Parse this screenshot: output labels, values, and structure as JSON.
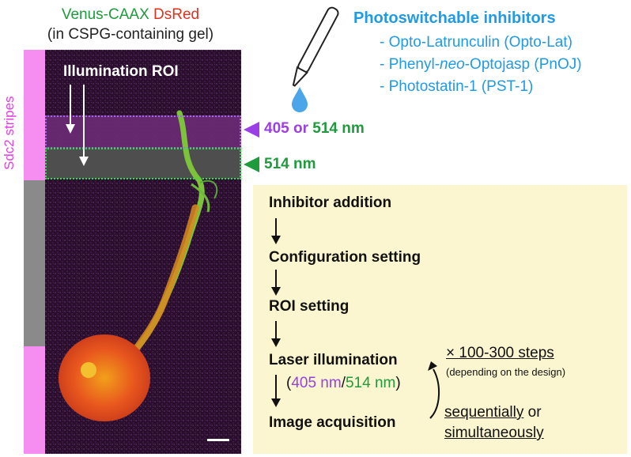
{
  "image_header": {
    "venus": "Venus-CAAX",
    "dsred": "DsRed",
    "gel": "(in CSPG-containing gel)"
  },
  "stripe_label": "Sdc2 stripes",
  "roi_label": "Illumination ROI",
  "wavelength_labels": {
    "upper_a": "405",
    "upper_or": " or ",
    "upper_b": "514 nm",
    "lower": "514 nm"
  },
  "inhibitors": {
    "title": "Photoswitchable inhibitors",
    "items": [
      {
        "prefix": "- Opto-Latrunculin (Opto-Lat)",
        "italic": "",
        "suffix": ""
      },
      {
        "prefix": "- Phenyl-",
        "italic": "neo",
        "suffix": "-Optojasp (PnOJ)"
      },
      {
        "prefix": "- Photostatin-1 (PST-1)",
        "italic": "",
        "suffix": ""
      }
    ]
  },
  "workflow": {
    "steps": [
      "Inhibitor addition",
      "Configuration setting",
      "ROI setting",
      "Laser illumination",
      "Image acquisition"
    ],
    "laser_wavelength": {
      "open": "(",
      "a": "405 nm",
      "slash": "/",
      "b": "514 nm",
      "close": ")"
    },
    "repeat": "× 100-300 steps",
    "repeat_note": "(depending on the design)",
    "mode_a": "sequentially",
    "mode_or": " or",
    "mode_b": "simultaneously"
  },
  "colors": {
    "venus_green": "#1f9a3c",
    "dsred_red": "#e0301e",
    "stripe_pink": "#f58ef0",
    "stripe_gray": "#8a8a8a",
    "violet": "#9a3fe6",
    "inhibitor_blue": "#1f9ae6",
    "panel_yellow": "#fbf6cf"
  },
  "icons": [
    "pipette-icon",
    "droplet-icon"
  ]
}
